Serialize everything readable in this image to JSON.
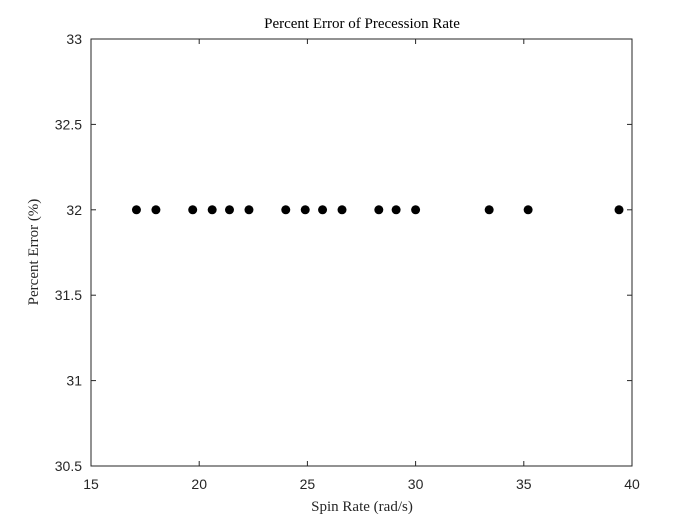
{
  "chart_data": {
    "type": "scatter",
    "title": "Percent Error of Precession Rate",
    "xlabel": "Spin Rate (rad/s)",
    "ylabel": "Percent Error (%)",
    "xlim": [
      15,
      40
    ],
    "ylim": [
      30.5,
      33
    ],
    "xticks": [
      15,
      20,
      25,
      30,
      35,
      40
    ],
    "yticks": [
      30.5,
      31,
      31.5,
      32,
      32.5,
      33
    ],
    "grid": false,
    "marker_color": "#000000",
    "series": [
      {
        "x": [
          17.1,
          18.0,
          19.7,
          20.6,
          21.4,
          22.3,
          24.0,
          24.9,
          25.7,
          26.6,
          28.3,
          29.1,
          30.0,
          33.4,
          35.2,
          39.4
        ],
        "y": [
          32.0,
          32.0,
          32.0,
          32.0,
          32.0,
          32.0,
          32.0,
          32.0,
          32.0,
          32.0,
          32.0,
          32.0,
          32.0,
          32.0,
          32.0,
          32.0
        ]
      }
    ]
  }
}
